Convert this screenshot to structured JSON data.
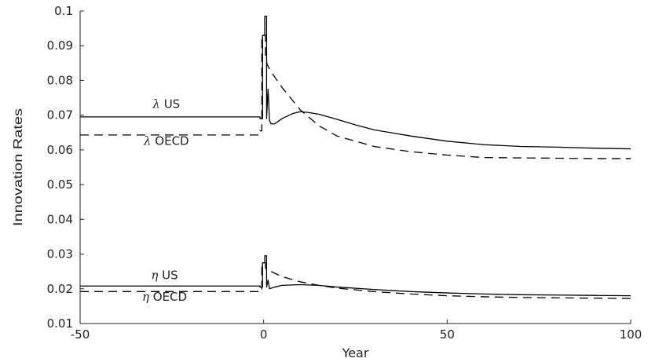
{
  "chart_data": {
    "type": "line",
    "xlabel": "Year",
    "ylabel": "Innovation Rates",
    "xlim": [
      -50,
      100
    ],
    "ylim": [
      0.01,
      0.1
    ],
    "x_ticks": [
      "-50",
      "0",
      "50",
      "100"
    ],
    "y_ticks": [
      "0.01",
      "0.02",
      "0.03",
      "0.04",
      "0.05",
      "0.06",
      "0.07",
      "0.08",
      "0.09",
      "0.1"
    ],
    "grid": false,
    "legend": "none",
    "series": [
      {
        "name": "λ US",
        "style": "solid",
        "x": [
          -50,
          -1,
          -1,
          -0.3,
          -0.3,
          0.3,
          0.3,
          0.8,
          0.8,
          1.2,
          1.6,
          2,
          3,
          5,
          8,
          10,
          12,
          15,
          20,
          25,
          30,
          40,
          50,
          60,
          70,
          80,
          90,
          100
        ],
        "y": [
          0.0695,
          0.0695,
          0.069,
          0.069,
          0.093,
          0.093,
          0.0985,
          0.0985,
          0.069,
          0.0775,
          0.0685,
          0.0675,
          0.0675,
          0.069,
          0.0705,
          0.071,
          0.0708,
          0.0703,
          0.0688,
          0.0672,
          0.0658,
          0.064,
          0.0625,
          0.0615,
          0.061,
          0.0608,
          0.0605,
          0.0603
        ]
      },
      {
        "name": "λ OECD",
        "style": "dashed",
        "x": [
          -50,
          -1,
          -1,
          -0.5,
          -0.5,
          0.5,
          0.5,
          1,
          2,
          5,
          10,
          15,
          20,
          30,
          40,
          50,
          60,
          70,
          80,
          90,
          100
        ],
        "y": [
          0.0643,
          0.0643,
          0.0655,
          0.0655,
          0.093,
          0.093,
          0.087,
          0.0845,
          0.0825,
          0.078,
          0.0715,
          0.067,
          0.064,
          0.061,
          0.0595,
          0.0585,
          0.0578,
          0.0577,
          0.0576,
          0.0575,
          0.0575
        ]
      },
      {
        "name": "η US",
        "style": "solid",
        "x": [
          -50,
          -1,
          -1,
          -0.3,
          -0.3,
          0.3,
          0.3,
          0.8,
          0.8,
          1.2,
          1.6,
          3,
          5,
          10,
          15,
          20,
          30,
          40,
          50,
          60,
          70,
          80,
          90,
          100
        ],
        "y": [
          0.0208,
          0.0208,
          0.0205,
          0.0205,
          0.0275,
          0.0275,
          0.0295,
          0.0295,
          0.0205,
          0.0225,
          0.02,
          0.0205,
          0.021,
          0.0212,
          0.021,
          0.0205,
          0.0198,
          0.0192,
          0.0188,
          0.0185,
          0.0183,
          0.0182,
          0.0181,
          0.018
        ]
      },
      {
        "name": "η OECD",
        "style": "dashed",
        "x": [
          -50,
          -1,
          -1,
          -0.5,
          -0.5,
          0.5,
          0.5,
          1,
          3,
          5,
          10,
          15,
          20,
          30,
          40,
          50,
          60,
          70,
          80,
          90,
          100
        ],
        "y": [
          0.0192,
          0.0192,
          0.0195,
          0.0195,
          0.0275,
          0.0275,
          0.026,
          0.0255,
          0.0245,
          0.0235,
          0.022,
          0.021,
          0.0202,
          0.0192,
          0.0185,
          0.018,
          0.0177,
          0.0175,
          0.0174,
          0.0173,
          0.0172
        ]
      }
    ],
    "annotations": [
      {
        "symbol": "λ",
        "text": "US",
        "x": -26.5,
        "y": 0.0721
      },
      {
        "symbol": "λ",
        "text": "OECD",
        "x": -26.5,
        "y": 0.0615
      },
      {
        "symbol": "η",
        "text": "US",
        "x": -27,
        "y": 0.0228
      },
      {
        "symbol": "η",
        "text": "OECD",
        "x": -27,
        "y": 0.0166
      }
    ]
  }
}
